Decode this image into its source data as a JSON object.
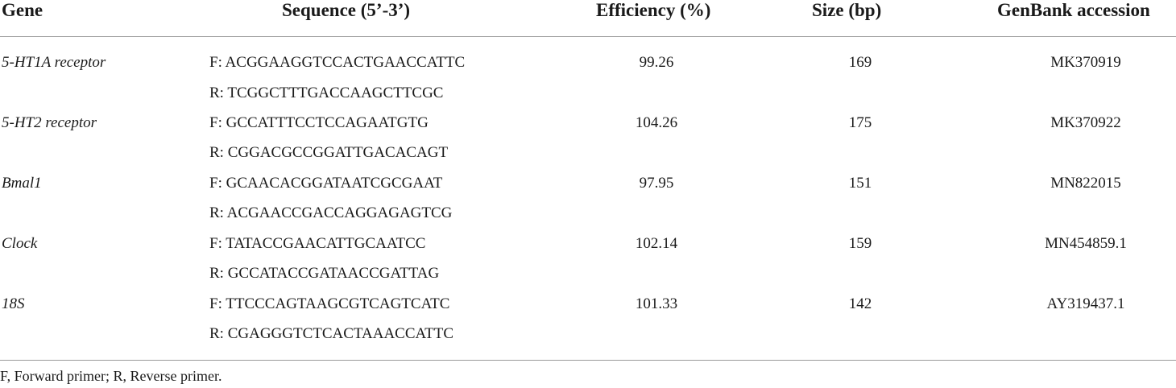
{
  "table": {
    "headers": {
      "gene": "Gene",
      "sequence": "Sequence (5’-3’)",
      "efficiency": "Efficiency (%)",
      "size": "Size (bp)",
      "genbank": "GenBank accession"
    },
    "rows": [
      {
        "gene": "5-HT1A receptor",
        "forward": "F: ACGGAAGGTCCACTGAACCATTC",
        "reverse": "R: TCGGCTTTGACCAAGCTTCGC",
        "efficiency": "99.26",
        "size": "169",
        "genbank": "MK370919"
      },
      {
        "gene": "5-HT2 receptor",
        "forward": "F: GCCATTTCCTCCAGAATGTG",
        "reverse": "R: CGGACGCCGGATTGACACAGT",
        "efficiency": "104.26",
        "size": "175",
        "genbank": "MK370922"
      },
      {
        "gene": "Bmal1",
        "forward": "F: GCAACACGGATAATCGCGAAT",
        "reverse": "R: ACGAACCGACCAGGAGAGTCG",
        "efficiency": "97.95",
        "size": "151",
        "genbank": "MN822015"
      },
      {
        "gene": "Clock",
        "forward": "F: TATACCGAACATTGCAATCC",
        "reverse": "R: GCCATACCGATAACCGATTAG",
        "efficiency": "102.14",
        "size": "159",
        "genbank": "MN454859.1"
      },
      {
        "gene": "18S",
        "forward": "F: TTCCCAGTAAGCGTCAGTCATC",
        "reverse": "R: CGAGGGTCTCACTAAACCATTC",
        "efficiency": "101.33",
        "size": "142",
        "genbank": "AY319437.1"
      }
    ],
    "footnote": "F, Forward primer; R, Reverse primer."
  }
}
